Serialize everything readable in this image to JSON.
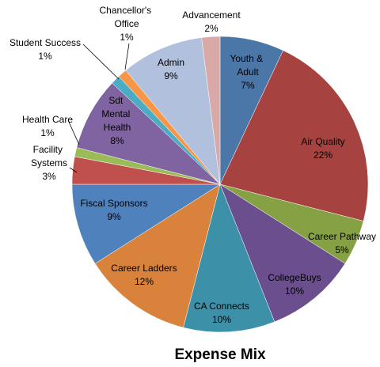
{
  "chart_data": {
    "type": "pie",
    "title": "Expense Mix",
    "categories": [
      "Youth & Adult",
      "Air Quality",
      "Career Pathway",
      "CollegeBuys",
      "CA Connects",
      "Career Ladders",
      "Fiscal Sponsors",
      "Facility Systems",
      "Health Care",
      "Sdt Mental Health",
      "Student Success",
      "Chancellor's Office",
      "Admin",
      "Advancement"
    ],
    "values": [
      7,
      22,
      5,
      10,
      10,
      12,
      9,
      3,
      1,
      8,
      1,
      1,
      9,
      2
    ],
    "value_labels": [
      "7%",
      "22%",
      "5%",
      "10%",
      "10%",
      "12%",
      "9%",
      "3%",
      "1%",
      "8%",
      "1%",
      "1%",
      "9%",
      "2%"
    ],
    "colors": [
      "#4a76a8",
      "#a64340",
      "#86a044",
      "#6b4e8e",
      "#3c91a8",
      "#d9823b",
      "#4f81bd",
      "#c0504d",
      "#9bbb59",
      "#8064a2",
      "#4bacc6",
      "#f79646",
      "#b1c0dd",
      "#d9a9a8"
    ]
  }
}
